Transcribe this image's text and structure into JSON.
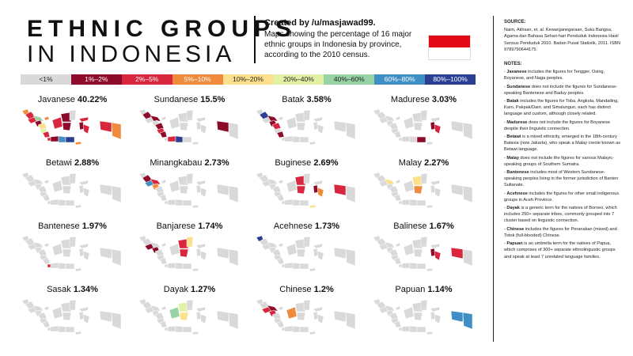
{
  "title": {
    "line1": "ETHNIC GROUPS",
    "line2": "IN INDONESIA"
  },
  "credit": "Created by /u/masjawad99.",
  "description": "Maps showing the percentage of 16 major ethnic groups in Indonesia by province, according to the 2010 census.",
  "flag": {
    "top": "#e30a17",
    "bottom": "#ffffff"
  },
  "legend": [
    {
      "label": "<1%",
      "color": "#d9d9d9",
      "text_color": "#222"
    },
    {
      "label": "1%–2%",
      "color": "#8e0a2a",
      "text_color": "#ffffff"
    },
    {
      "label": "2%–5%",
      "color": "#d7263d",
      "text_color": "#ffffff"
    },
    {
      "label": "5%–10%",
      "color": "#f08a3c",
      "text_color": "#ffffff"
    },
    {
      "label": "10%–20%",
      "color": "#fde08b",
      "text_color": "#222"
    },
    {
      "label": "20%–40%",
      "color": "#e2f1a6",
      "text_color": "#222"
    },
    {
      "label": "40%–60%",
      "color": "#97d3a4",
      "text_color": "#222"
    },
    {
      "label": "60%–80%",
      "color": "#3f8fc4",
      "text_color": "#ffffff"
    },
    {
      "label": "80%–100%",
      "color": "#2a3f93",
      "text_color": "#ffffff"
    }
  ],
  "maps": [
    {
      "name": "Javanese",
      "pct": "40.22%",
      "colors": [
        "#f08a3c",
        "#d7263d",
        "#d7263d",
        "#97d3a4",
        "#8e0a2a",
        "#fde08b",
        "#e2f1a6",
        "#d7263d",
        "#f08a3c",
        "#d7263d",
        "#8e0a2a",
        "#3f8fc4",
        "#2a3f93",
        "#d7263d",
        "#8e0a2a",
        "#8e0a2a",
        "#d9d9d9",
        "#d7263d",
        "#8e0a2a",
        "#d7263d",
        "#f08a3c",
        "#d7263d",
        "#f08a3c"
      ]
    },
    {
      "name": "Sundanese",
      "pct": "15.5%",
      "colors": [
        "#d9d9d9",
        "#8e0a2a",
        "#d9d9d9",
        "#8e0a2a",
        "#d9d9d9",
        "#8e0a2a",
        "#d7263d",
        "#8e0a2a",
        "#d9d9d9",
        "#d9d9d9",
        "#d7263d",
        "#2a3f93",
        "#d9d9d9",
        "#d9d9d9",
        "#d9d9d9",
        "#d9d9d9",
        "#d9d9d9",
        "#d9d9d9",
        "#d9d9d9",
        "#d9d9d9",
        "#d9d9d9",
        "#8e0a2a",
        "#d9d9d9"
      ]
    },
    {
      "name": "Batak",
      "pct": "3.58%",
      "colors": [
        "#d9d9d9",
        "#2a3f93",
        "#d9d9d9",
        "#8e0a2a",
        "#8e0a2a",
        "#d7263d",
        "#d9d9d9",
        "#8e0a2a",
        "#d9d9d9",
        "#d9d9d9",
        "#d9d9d9",
        "#d9d9d9",
        "#d9d9d9",
        "#d9d9d9",
        "#d9d9d9",
        "#d9d9d9",
        "#d9d9d9",
        "#d9d9d9",
        "#d9d9d9",
        "#d9d9d9",
        "#d9d9d9",
        "#d9d9d9",
        "#d9d9d9"
      ]
    },
    {
      "name": "Madurese",
      "pct": "3.03%",
      "colors": [
        "#d9d9d9",
        "#d9d9d9",
        "#d9d9d9",
        "#d9d9d9",
        "#d9d9d9",
        "#d9d9d9",
        "#d9d9d9",
        "#d9d9d9",
        "#d9d9d9",
        "#d9d9d9",
        "#d9d9d9",
        "#d9d9d9",
        "#8e0a2a",
        "#d9d9d9",
        "#d9d9d9",
        "#d9d9d9",
        "#d9d9d9",
        "#d9d9d9",
        "#8e0a2a",
        "#d7263d",
        "#d9d9d9",
        "#d9d9d9",
        "#d9d9d9"
      ]
    },
    {
      "name": "Betawi",
      "pct": "2.88%",
      "colors": [
        "#d9d9d9",
        "#d9d9d9",
        "#d9d9d9",
        "#d9d9d9",
        "#d9d9d9",
        "#d9d9d9",
        "#d9d9d9",
        "#d9d9d9",
        "#d9d9d9",
        "#d9d9d9",
        "#d9d9d9",
        "#d9d9d9",
        "#d9d9d9",
        "#d9d9d9",
        "#d9d9d9",
        "#d9d9d9",
        "#d9d9d9",
        "#d9d9d9",
        "#d9d9d9",
        "#d9d9d9",
        "#d9d9d9",
        "#d9d9d9",
        "#d9d9d9"
      ]
    },
    {
      "name": "Minangkabau",
      "pct": "2.73%",
      "colors": [
        "#d9d9d9",
        "#8e0a2a",
        "#3f8fc4",
        "#d7263d",
        "#f08a3c",
        "#d9d9d9",
        "#d9d9d9",
        "#d9d9d9",
        "#d9d9d9",
        "#d9d9d9",
        "#d9d9d9",
        "#d9d9d9",
        "#d9d9d9",
        "#d9d9d9",
        "#d9d9d9",
        "#d9d9d9",
        "#d9d9d9",
        "#d9d9d9",
        "#d9d9d9",
        "#d9d9d9",
        "#d9d9d9",
        "#d9d9d9",
        "#d9d9d9"
      ]
    },
    {
      "name": "Buginese",
      "pct": "2.69%",
      "colors": [
        "#d9d9d9",
        "#d9d9d9",
        "#d9d9d9",
        "#d9d9d9",
        "#d9d9d9",
        "#d9d9d9",
        "#d9d9d9",
        "#d9d9d9",
        "#d9d9d9",
        "#d9d9d9",
        "#d9d9d9",
        "#d9d9d9",
        "#d9d9d9",
        "#d9d9d9",
        "#d7263d",
        "#d7263d",
        "#d9d9d9",
        "#d9d9d9",
        "#8e0a2a",
        "#f08a3c",
        "#fde08b",
        "#d7263d",
        "#d9d9d9"
      ]
    },
    {
      "name": "Malay",
      "pct": "2.27%",
      "colors": [
        "#d9d9d9",
        "#d9d9d9",
        "#d9d9d9",
        "#fde08b",
        "#d9d9d9",
        "#d9d9d9",
        "#d9d9d9",
        "#d9d9d9",
        "#d9d9d9",
        "#d9d9d9",
        "#d9d9d9",
        "#d9d9d9",
        "#d9d9d9",
        "#d9d9d9",
        "#fde08b",
        "#f08a3c",
        "#d9d9d9",
        "#d9d9d9",
        "#d9d9d9",
        "#d9d9d9",
        "#d9d9d9",
        "#d9d9d9",
        "#d9d9d9"
      ]
    },
    {
      "name": "Bantenese",
      "pct": "1.97%",
      "colors": [
        "#d9d9d9",
        "#d9d9d9",
        "#d9d9d9",
        "#d9d9d9",
        "#d9d9d9",
        "#d9d9d9",
        "#d9d9d9",
        "#d9d9d9",
        "#d9d9d9",
        "#d7263d",
        "#d9d9d9",
        "#d9d9d9",
        "#d9d9d9",
        "#d9d9d9",
        "#d9d9d9",
        "#d9d9d9",
        "#d9d9d9",
        "#d9d9d9",
        "#d9d9d9",
        "#d9d9d9",
        "#d9d9d9",
        "#d9d9d9",
        "#d9d9d9"
      ]
    },
    {
      "name": "Banjarese",
      "pct": "1.74%",
      "colors": [
        "#d9d9d9",
        "#d9d9d9",
        "#8e0a2a",
        "#d9d9d9",
        "#8e0a2a",
        "#d9d9d9",
        "#d9d9d9",
        "#d9d9d9",
        "#d9d9d9",
        "#d9d9d9",
        "#d9d9d9",
        "#d9d9d9",
        "#d9d9d9",
        "#d9d9d9",
        "#d7263d",
        "#d7263d",
        "#fde08b",
        "#d9d9d9",
        "#d9d9d9",
        "#d9d9d9",
        "#d9d9d9",
        "#d9d9d9",
        "#d9d9d9"
      ]
    },
    {
      "name": "Acehnese",
      "pct": "1.73%",
      "colors": [
        "#2a3f93",
        "#d9d9d9",
        "#d9d9d9",
        "#d9d9d9",
        "#d9d9d9",
        "#d9d9d9",
        "#d9d9d9",
        "#d9d9d9",
        "#d9d9d9",
        "#d9d9d9",
        "#d9d9d9",
        "#d9d9d9",
        "#d9d9d9",
        "#d9d9d9",
        "#d9d9d9",
        "#d9d9d9",
        "#d9d9d9",
        "#d9d9d9",
        "#d9d9d9",
        "#d9d9d9",
        "#d9d9d9",
        "#d9d9d9",
        "#d9d9d9"
      ]
    },
    {
      "name": "Balinese",
      "pct": "1.67%",
      "colors": [
        "#d9d9d9",
        "#d9d9d9",
        "#d9d9d9",
        "#d9d9d9",
        "#d9d9d9",
        "#d9d9d9",
        "#d9d9d9",
        "#d9d9d9",
        "#d9d9d9",
        "#d9d9d9",
        "#d9d9d9",
        "#d9d9d9",
        "#d9d9d9",
        "#d9d9d9",
        "#d9d9d9",
        "#d9d9d9",
        "#d9d9d9",
        "#d9d9d9",
        "#8e0a2a",
        "#d7263d",
        "#d9d9d9",
        "#d7263d",
        "#d9d9d9"
      ]
    },
    {
      "name": "Sasak",
      "pct": "1.34%",
      "colors": [
        "#d9d9d9",
        "#d9d9d9",
        "#d9d9d9",
        "#d9d9d9",
        "#d9d9d9",
        "#d9d9d9",
        "#d9d9d9",
        "#d9d9d9",
        "#d9d9d9",
        "#d9d9d9",
        "#d9d9d9",
        "#d9d9d9",
        "#d9d9d9",
        "#d9d9d9",
        "#d9d9d9",
        "#d9d9d9",
        "#d9d9d9",
        "#d9d9d9",
        "#d9d9d9",
        "#d9d9d9",
        "#d9d9d9",
        "#d9d9d9",
        "#d9d9d9"
      ]
    },
    {
      "name": "Dayak",
      "pct": "1.27%",
      "colors": [
        "#d9d9d9",
        "#d9d9d9",
        "#d9d9d9",
        "#d9d9d9",
        "#d9d9d9",
        "#d9d9d9",
        "#d9d9d9",
        "#d9d9d9",
        "#d9d9d9",
        "#d9d9d9",
        "#d9d9d9",
        "#d9d9d9",
        "#d9d9d9",
        "#97d3a4",
        "#e2f1a6",
        "#fde08b",
        "#d9d9d9",
        "#d9d9d9",
        "#d9d9d9",
        "#d9d9d9",
        "#d9d9d9",
        "#d9d9d9",
        "#d9d9d9"
      ]
    },
    {
      "name": "Chinese",
      "pct": "1.2%",
      "colors": [
        "#d9d9d9",
        "#d9d9d9",
        "#d7263d",
        "#8e0a2a",
        "#d7263d",
        "#d9d9d9",
        "#d9d9d9",
        "#d9d9d9",
        "#d9d9d9",
        "#d9d9d9",
        "#d9d9d9",
        "#d9d9d9",
        "#d9d9d9",
        "#f08a3c",
        "#d9d9d9",
        "#d9d9d9",
        "#d9d9d9",
        "#d9d9d9",
        "#d9d9d9",
        "#d9d9d9",
        "#d9d9d9",
        "#d9d9d9",
        "#d9d9d9"
      ]
    },
    {
      "name": "Papuan",
      "pct": "1.14%",
      "colors": [
        "#d9d9d9",
        "#d9d9d9",
        "#d9d9d9",
        "#d9d9d9",
        "#d9d9d9",
        "#d9d9d9",
        "#d9d9d9",
        "#d9d9d9",
        "#d9d9d9",
        "#d9d9d9",
        "#d9d9d9",
        "#d9d9d9",
        "#d9d9d9",
        "#d9d9d9",
        "#d9d9d9",
        "#d9d9d9",
        "#d9d9d9",
        "#d9d9d9",
        "#d9d9d9",
        "#d9d9d9",
        "#d9d9d9",
        "#3f8fc4",
        "#3f8fc4"
      ]
    }
  ],
  "sidebar": {
    "source_heading": "SOURCE:",
    "source_text": "Naim, Akhsan, et. al. Kewarganegaraan, Suku Bangsa, Agama dan Bahasa Sehari-hari Penduduk Indonesia Hasil Sensus Penduduk 2010. Badan Pusat Statistik, 2011. ISBN 9789790644175.",
    "notes_heading": "NOTES:",
    "notes": [
      {
        "term": "Javanese",
        "text": "includes the figures for Tengger, Osing, Boyanese, and Naga peoples."
      },
      {
        "term": "Sundanese",
        "text": "does not include the figures for Sundanese-speaking Bantenese and Baduy peoples."
      },
      {
        "term": "Batak",
        "text": "includes the figures for Toba, Angkola, Mandailing, Karo, Pakpak/Dairi, and Simalungun, each has distinct language and custom, although closely related."
      },
      {
        "term": "Madurese",
        "text": "does not include the figures for Boyanese despite their linguistic connection."
      },
      {
        "term": "Betawi",
        "text": "is a mixed ethnicity, emerged in the 18th-century Batavia (now Jakarta), who speak a Malay creole known as Betawi language."
      },
      {
        "term": "Malay",
        "text": "does not include the figures for various Malayic-speaking groups of Southern Sumatra."
      },
      {
        "term": "Bantenese",
        "text": "includes most of Western Sundanese-speaking peoples living in the former jurisdiction of Banten Sultanate."
      },
      {
        "term": "Acehnese",
        "text": "includes the figures for other small indigenous groups in Aceh Province."
      },
      {
        "term": "Dayak",
        "text": "is a generic term for the natives of Borneo, which includes 250+ separate tribes, commonly grouped into 7 cluster based on linguistic connection."
      },
      {
        "term": "Chinese",
        "text": "includes the figures for Peranakan (mixed) and Totok (full-blooded) Chinese."
      },
      {
        "term": "Papuan",
        "text": "is an umbrella term for the natives of Papua, which comprises of 300+ separate ethnolinguistic groups and speak at least 7 unrelated language families."
      }
    ]
  }
}
